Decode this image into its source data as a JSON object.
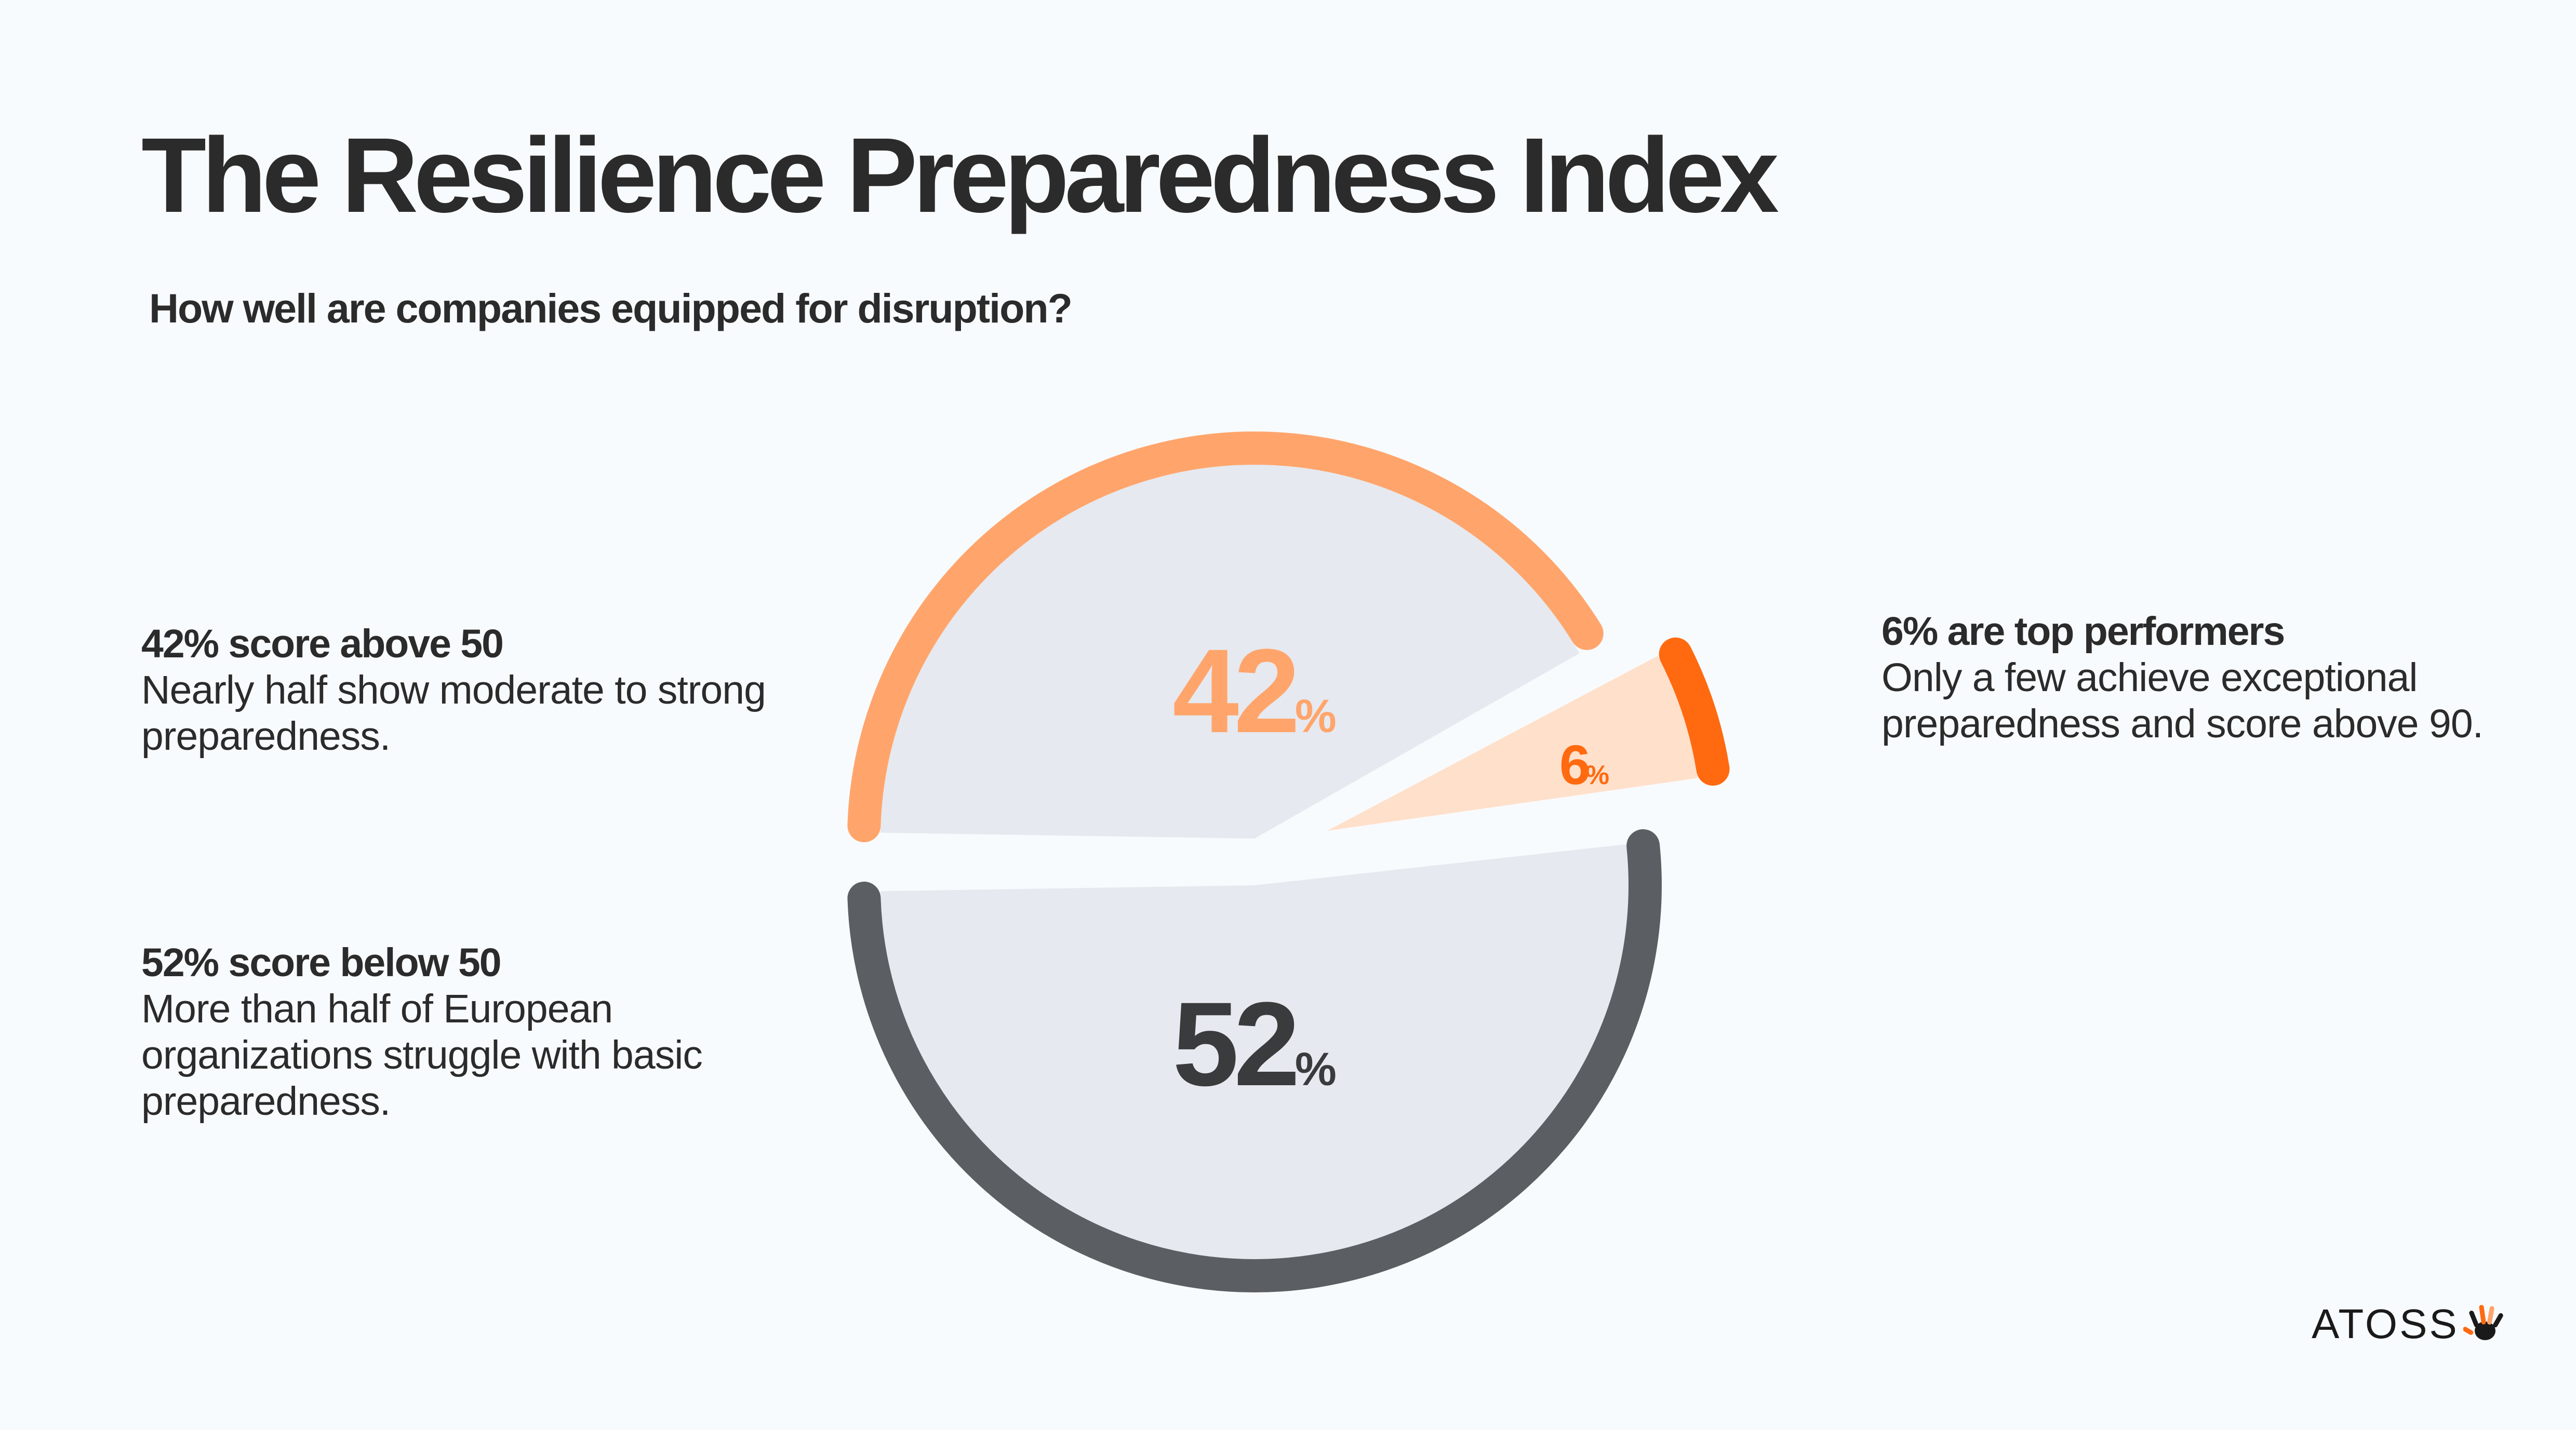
{
  "title": "The Resilience Preparedness Index",
  "subtitle": "How well are companies equipped for disruption?",
  "notes": {
    "above50": {
      "head": "42% score above 50",
      "body": "Nearly half show moderate to strong preparedness."
    },
    "below50": {
      "head": "52% score below 50",
      "body": "More than half of European organizations struggle with basic preparedness."
    },
    "top": {
      "head": "6% are top performers",
      "body": "Only a few achieve exceptional preparedness and score above 90."
    }
  },
  "chart_data": {
    "type": "pie",
    "categories": [
      "score below 50",
      "score above 50",
      "top performers"
    ],
    "values": [
      52,
      42,
      6
    ],
    "unit": "%",
    "labels": [
      "52",
      "42",
      "6"
    ],
    "colors": {
      "below50_arc": "#5b5e63",
      "below50_fill": "#e6e9ef",
      "below50_text": "#3a3b3d",
      "above50_arc": "#ffa56c",
      "above50_fill": "#e6e9ef",
      "above50_text": "#ffa56c",
      "top_arc": "#ff6a10",
      "top_fill": "#ffe0cb",
      "top_text": "#ff6a10"
    }
  },
  "logo": {
    "text": "ATOSS",
    "icon": "hand-icon"
  }
}
